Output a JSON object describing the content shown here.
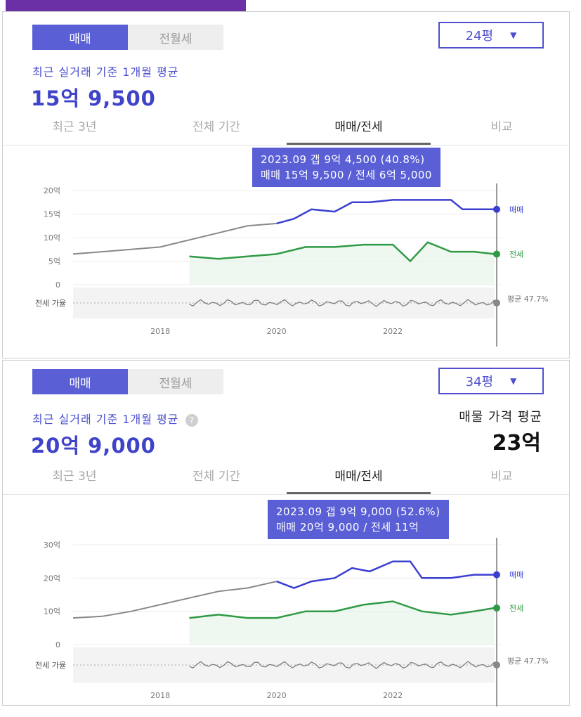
{
  "colors": {
    "accent": "#5a5fd6",
    "sale": "#3a3fd0",
    "jeonse": "#2f9a45",
    "gray": "#888888"
  },
  "panels": [
    {
      "segment": {
        "active": "매매",
        "inactive": "전월세"
      },
      "dropdown": {
        "value": "24평",
        "icon": "caret-down-icon"
      },
      "subtitle": "최근 실거래 기준 1개월 평균",
      "price": "15억 9,500",
      "tabs": [
        "최근 3년",
        "전체 기간",
        "매매/전세",
        "비교"
      ],
      "active_tab": "매매/전세",
      "tooltip": {
        "line1": "2023.09  갭 9억 4,500 (40.8%)",
        "line2": "매매 15억 9,500 / 전세 6억 5,000"
      },
      "chart_data": {
        "type": "line",
        "ylabels": [
          "20억",
          "15억",
          "10억",
          "5억",
          "0"
        ],
        "ylim": [
          0,
          20
        ],
        "xticks": [
          "2018",
          "2020",
          "2022"
        ],
        "series": [
          {
            "name": "매매",
            "x": [
              2016.5,
              2017,
              2017.5,
              2018,
              2018.5,
              2019,
              2019.5,
              2020,
              2020.3,
              2020.6,
              2021,
              2021.3,
              2021.6,
              2022,
              2022.5,
              2023,
              2023.2,
              2023.5,
              2023.75
            ],
            "values": [
              6.5,
              7,
              7.5,
              8,
              9.5,
              11,
              12.5,
              13,
              14,
              16,
              15.5,
              17.5,
              17.5,
              18,
              18,
              18,
              16,
              16,
              16
            ]
          },
          {
            "name": "전세",
            "x": [
              2018.5,
              2019,
              2019.5,
              2020,
              2020.5,
              2021,
              2021.5,
              2022,
              2022.3,
              2022.6,
              2023,
              2023.4,
              2023.75
            ],
            "values": [
              6,
              5.5,
              6,
              6.5,
              8,
              8,
              8.5,
              8.5,
              5,
              9,
              7,
              7,
              6.5
            ]
          }
        ],
        "ratio_label": "전세 가율",
        "ratio_value": "평균 47.7%",
        "legend": [
          "매매",
          "전세"
        ]
      }
    },
    {
      "segment": {
        "active": "매매",
        "inactive": "전월세"
      },
      "dropdown": {
        "value": "34평",
        "icon": "caret-down-icon"
      },
      "subtitle": "최근 실거래 기준 1개월 평균",
      "price": "20억 9,000",
      "listing_label": "매물 가격 평균",
      "listing_value": "23억",
      "tabs": [
        "최근 3년",
        "전체 기간",
        "매매/전세",
        "비교"
      ],
      "active_tab": "매매/전세",
      "tooltip": {
        "line1": "2023.09  갭 9억 9,000 (52.6%)",
        "line2": "매매 20억 9,000 / 전세 11억"
      },
      "chart_data": {
        "type": "line",
        "ylabels": [
          "30억",
          "20억",
          "10억",
          "0"
        ],
        "ylim": [
          0,
          30
        ],
        "xticks": [
          "2018",
          "2020",
          "2022"
        ],
        "series": [
          {
            "name": "매매",
            "x": [
              2016.5,
              2017,
              2017.5,
              2018,
              2018.5,
              2019,
              2019.5,
              2020,
              2020.3,
              2020.6,
              2021,
              2021.3,
              2021.6,
              2022,
              2022.3,
              2022.5,
              2023,
              2023.4,
              2023.75
            ],
            "values": [
              8,
              8.5,
              10,
              12,
              14,
              16,
              17,
              19,
              17,
              19,
              20,
              23,
              22,
              25,
              25,
              20,
              20,
              21,
              21
            ]
          },
          {
            "name": "전세",
            "x": [
              2018.5,
              2019,
              2019.5,
              2020,
              2020.5,
              2021,
              2021.5,
              2022,
              2022.5,
              2023,
              2023.4,
              2023.75
            ],
            "values": [
              8,
              9,
              8,
              8,
              10,
              10,
              12,
              13,
              10,
              9,
              10,
              11
            ]
          }
        ],
        "ratio_label": "전세 가율",
        "ratio_value": "평균 47.7%",
        "legend": [
          "매매",
          "전세"
        ]
      }
    }
  ]
}
